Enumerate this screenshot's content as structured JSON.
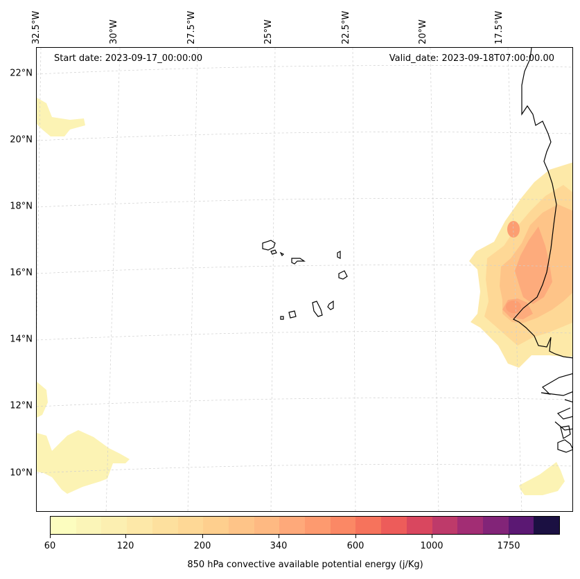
{
  "map": {
    "start_date_text": "Start date: 2023-09-17_00:00:00",
    "valid_date_text": "Valid_date: 2023-09-18T07:00:00.00",
    "lat_labels": [
      "22°N",
      "20°N",
      "18°N",
      "16°N",
      "14°N",
      "12°N",
      "10°N"
    ],
    "lon_labels": [
      "32.5°W",
      "30°W",
      "27.5°W",
      "25°W",
      "22.5°W",
      "20°W",
      "17.5°W"
    ],
    "colormap": "magma_r",
    "gridlines": true
  },
  "colorbar": {
    "title": "850 hPa convective available potential energy (j/Kg)",
    "tick_labels": [
      "60",
      "120",
      "200",
      "340",
      "600",
      "1000",
      "1750"
    ],
    "colors": [
      "#fcfdbf",
      "#fbf5b8",
      "#fcefb1",
      "#fde8a8",
      "#fde09e",
      "#fed896",
      "#fecf8e",
      "#fec488",
      "#feb982",
      "#fea97a",
      "#fd9a6f",
      "#fb8865",
      "#f6735c",
      "#ed5c5a",
      "#d9475f",
      "#be3a6a",
      "#a22d74",
      "#822478",
      "#5b1873",
      "#1b1042"
    ]
  }
}
